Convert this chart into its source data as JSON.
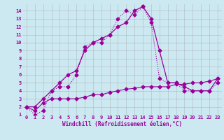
{
  "xlabel": "Windchill (Refroidissement éolien,°C)",
  "x": [
    0,
    1,
    2,
    3,
    4,
    5,
    6,
    7,
    8,
    9,
    10,
    11,
    12,
    13,
    14,
    15,
    16,
    17,
    18,
    19,
    20,
    21,
    22,
    23
  ],
  "line1_y": [
    2,
    2,
    3,
    4,
    5,
    6,
    6.5,
    9,
    10,
    10.5,
    11,
    12,
    12.5,
    14,
    14.5,
    13,
    9,
    5,
    5,
    4.5,
    4,
    4,
    4,
    5.5
  ],
  "line2_y": [
    2,
    1,
    1.5,
    4,
    4.5,
    4.5,
    6,
    9.5,
    10,
    10,
    11,
    13,
    14,
    13.5,
    14.5,
    12.5,
    5.5,
    5,
    5,
    4,
    4,
    4,
    4,
    5
  ],
  "line3_y": [
    2,
    1.5,
    2.5,
    3,
    3,
    3,
    3,
    3.2,
    3.5,
    3.5,
    3.8,
    4,
    4.2,
    4.3,
    4.5,
    4.5,
    4.5,
    4.5,
    4.8,
    4.8,
    5,
    5,
    5.2,
    5.5
  ],
  "line_color": "#990099",
  "bg_color": "#cce8f0",
  "grid_color": "#b0b8c0",
  "ylim": [
    1,
    14.8
  ],
  "xlim": [
    -0.5,
    23.5
  ],
  "yticks": [
    1,
    2,
    3,
    4,
    5,
    6,
    7,
    8,
    9,
    10,
    11,
    12,
    13,
    14
  ],
  "xticks": [
    0,
    1,
    2,
    3,
    4,
    5,
    6,
    7,
    8,
    9,
    10,
    11,
    12,
    13,
    14,
    15,
    16,
    17,
    18,
    19,
    20,
    21,
    22,
    23
  ]
}
